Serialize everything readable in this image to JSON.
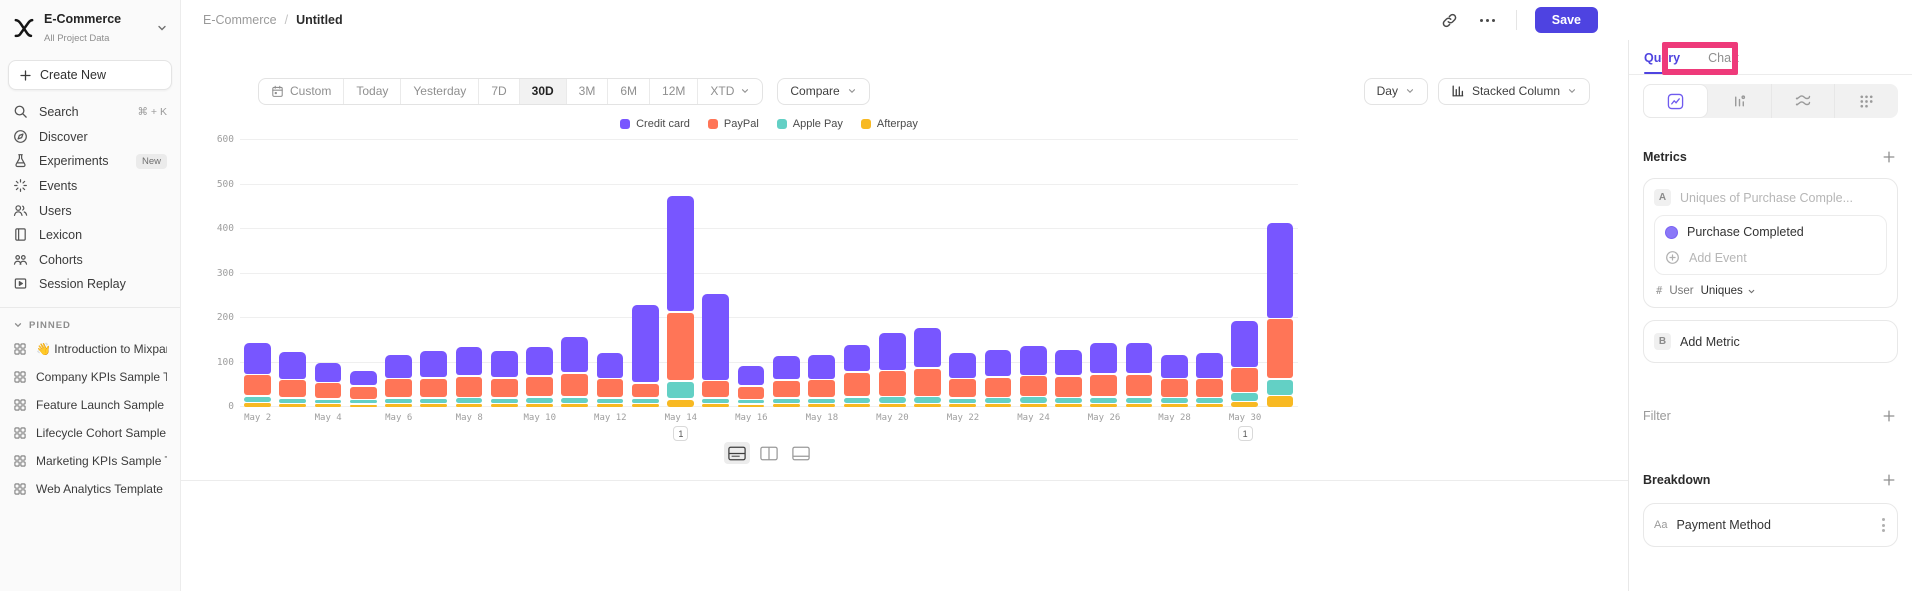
{
  "sidebar": {
    "project_name": "E-Commerce",
    "project_subtitle": "All Project Data",
    "create_new_label": "Create New",
    "nav": [
      {
        "icon": "search",
        "label": "Search",
        "shortcut": "⌘ + K"
      },
      {
        "icon": "discover",
        "label": "Discover"
      },
      {
        "icon": "experiments",
        "label": "Experiments",
        "badge": "New"
      },
      {
        "icon": "events",
        "label": "Events"
      },
      {
        "icon": "users",
        "label": "Users"
      },
      {
        "icon": "lexicon",
        "label": "Lexicon"
      },
      {
        "icon": "cohorts",
        "label": "Cohorts"
      },
      {
        "icon": "session-replay",
        "label": "Session Replay"
      }
    ],
    "pinned_header": "PINNED",
    "pinned": [
      {
        "label": "👋 Introduction to Mixpanel Boards"
      },
      {
        "label": "Company KPIs Sample Template"
      },
      {
        "label": "Feature Launch Sample Template"
      },
      {
        "label": "Lifecycle Cohort Sample Template"
      },
      {
        "label": "Marketing KPIs Sample Template"
      },
      {
        "label": "Web Analytics Template"
      }
    ]
  },
  "header": {
    "breadcrumb_project": "E-Commerce",
    "breadcrumb_separator": "/",
    "breadcrumb_title": "Untitled",
    "save_label": "Save"
  },
  "toolbar": {
    "date_ranges": [
      "Custom",
      "Today",
      "Yesterday",
      "7D",
      "30D",
      "3M",
      "6M",
      "12M",
      "XTD"
    ],
    "active_range": "30D",
    "compare_label": "Compare",
    "granularity_label": "Day",
    "chart_type_label": "Stacked Column"
  },
  "chart_data": {
    "type": "bar",
    "stacked": true,
    "title": "",
    "xlabel": "",
    "ylabel": "",
    "ylim": [
      0,
      600
    ],
    "yticks": [
      0,
      100,
      200,
      300,
      400,
      500,
      600
    ],
    "grid": true,
    "legend_position": "top-center",
    "x_tick_every": 2,
    "x": [
      "May 2",
      "May 3",
      "May 4",
      "May 5",
      "May 6",
      "May 7",
      "May 8",
      "May 9",
      "May 10",
      "May 11",
      "May 12",
      "May 13",
      "May 14",
      "May 15",
      "May 16",
      "May 17",
      "May 18",
      "May 19",
      "May 20",
      "May 21",
      "May 22",
      "May 23",
      "May 24",
      "May 25",
      "May 26",
      "May 27",
      "May 28",
      "May 29",
      "May 30",
      "May 31"
    ],
    "stack_order": "first-series-on-top",
    "series": [
      {
        "name": "Credit card",
        "color": "#7856ff",
        "values": [
          72,
          62,
          44,
          36,
          56,
          63,
          66,
          61,
          66,
          82,
          59,
          176,
          262,
          196,
          46,
          56,
          57,
          62,
          86,
          92,
          58,
          62,
          68,
          60,
          70,
          72,
          55,
          58,
          106,
          216
        ]
      },
      {
        "name": "PayPal",
        "color": "#ff7557",
        "values": [
          48,
          42,
          37,
          31,
          43,
          45,
          48,
          45,
          47,
          54,
          43,
          34,
          155,
          39,
          31,
          40,
          42,
          56,
          59,
          64,
          44,
          46,
          48,
          48,
          52,
          52,
          42,
          43,
          56,
          135
        ]
      },
      {
        "name": "Apple Pay",
        "color": "#63d0c5",
        "values": [
          14,
          12,
          11,
          10,
          12,
          12,
          13,
          12,
          14,
          14,
          12,
          12,
          40,
          12,
          10,
          12,
          12,
          14,
          15,
          15,
          12,
          13,
          15,
          13,
          14,
          14,
          13,
          13,
          20,
          38
        ]
      },
      {
        "name": "Afterpay",
        "color": "#f8b922",
        "values": [
          12,
          10,
          9,
          8,
          10,
          10,
          10,
          10,
          10,
          10,
          10,
          10,
          20,
          10,
          8,
          10,
          10,
          10,
          10,
          10,
          10,
          10,
          10,
          10,
          10,
          10,
          10,
          10,
          14,
          27
        ]
      }
    ],
    "annotations": [
      {
        "x": "May 14",
        "label": "1"
      },
      {
        "x": "May 30",
        "label": "1"
      }
    ]
  },
  "panel": {
    "tabs": [
      {
        "label": "Query",
        "active": true
      },
      {
        "label": "Chart",
        "active": false
      }
    ],
    "metrics_title": "Metrics",
    "metric_row_letter": "A",
    "metric_row_placeholder": "Uniques of Purchase Comple...",
    "event_name": "Purchase Completed",
    "add_event_label": "Add Event",
    "aggregation_hash": "#",
    "aggregation_prefix": "User",
    "aggregation_value": "Uniques",
    "add_metric_letter": "B",
    "add_metric_label": "Add Metric",
    "filter_title": "Filter",
    "breakdown_title": "Breakdown",
    "breakdown_property_chip": "Aa",
    "breakdown_property": "Payment Method"
  }
}
